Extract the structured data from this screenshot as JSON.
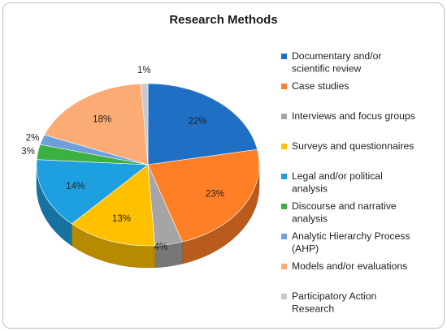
{
  "chart_data": {
    "type": "pie",
    "title": "Research Methods",
    "slices": [
      {
        "label": "Documentary and/or scientific review",
        "label_lines": [
          "Documentary and/or",
          "scientific review"
        ],
        "value": 22,
        "value_label": "22%",
        "color": "#1f6fc5"
      },
      {
        "label": "Case studies",
        "label_lines": [
          "Case studies"
        ],
        "value": 23,
        "value_label": "23%",
        "color": "#ff7f27"
      },
      {
        "label": "Interviews and focus groups",
        "label_lines": [
          "Interviews and focus groups"
        ],
        "value": 4,
        "value_label": "4%",
        "color": "#a5a5a5"
      },
      {
        "label": "Surveys and questionnaires",
        "label_lines": [
          "Surveys and questionnaires"
        ],
        "value": 13,
        "value_label": "13%",
        "color": "#ffc000"
      },
      {
        "label": "Legal and/or political analysis",
        "label_lines": [
          "Legal and/or political",
          "analysis"
        ],
        "value": 14,
        "value_label": "14%",
        "color": "#1ea0e0"
      },
      {
        "label": "Discourse and narrative analysis",
        "label_lines": [
          "Discourse and narrative",
          "analysis"
        ],
        "value": 3,
        "value_label": "3%",
        "color": "#3cb043"
      },
      {
        "label": "Analytic Hierarchy Process (AHP)",
        "label_lines": [
          "Analytic Hierarchy Process",
          "(AHP)"
        ],
        "value": 2,
        "value_label": "2%",
        "color": "#6fa0dc"
      },
      {
        "label": "Models and/or evaluations",
        "label_lines": [
          "Models and/or evaluations"
        ],
        "value": 18,
        "value_label": "18%",
        "color": "#fbab74"
      },
      {
        "label": "Participatory Action Research",
        "label_lines": [
          "Participatory Action",
          "Research"
        ],
        "value": 1,
        "value_label": "1%",
        "color": "#c9c9c9"
      }
    ],
    "legend_position": "right",
    "style": "3d-pie"
  }
}
